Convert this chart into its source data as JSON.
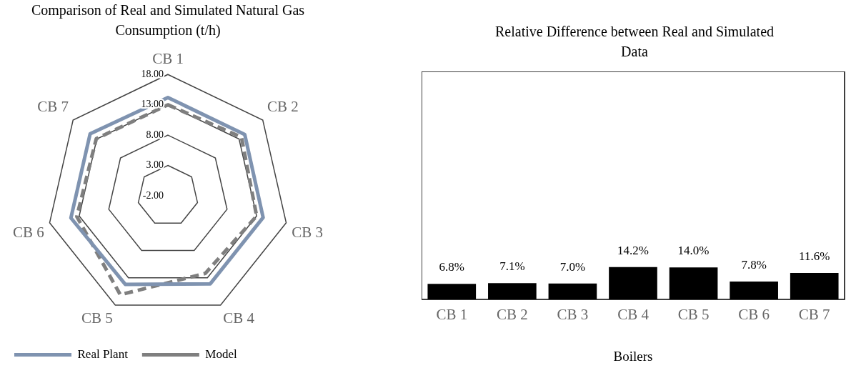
{
  "chart_data": [
    {
      "type": "radar",
      "title": "Comparison of Real and Simulated Natural Gas Consumption (t/h)",
      "categories": [
        "CB 1",
        "CB 2",
        "CB 3",
        "CB 4",
        "CB 5",
        "CB 6",
        "CB 7"
      ],
      "series": [
        {
          "name": "Real Plant",
          "color": "#7f93b0",
          "values": [
            14.2,
            14.2,
            14.1,
            14.1,
            14.2,
            14.4,
            14.4
          ],
          "line_style": "solid"
        },
        {
          "name": "Model",
          "color": "#7f7f7f",
          "values": [
            13.0,
            13.5,
            13.0,
            12.2,
            16.1,
            13.4,
            13.1
          ],
          "line_style": "dashed"
        }
      ],
      "ylim": [
        -2,
        18
      ],
      "yticks": [
        {
          "value": -2,
          "label": "-2.00"
        },
        {
          "value": 3,
          "label": "3.00"
        },
        {
          "value": 8,
          "label": "8.00"
        },
        {
          "value": 13,
          "label": "13.00"
        },
        {
          "value": 18,
          "label": "18.00"
        }
      ],
      "grid": true,
      "legend": "bottom left",
      "marker": "none"
    },
    {
      "type": "bar",
      "title": "Relative Difference between Real and Simulated Data",
      "xlabel": "Boilers",
      "categories": [
        "CB 1",
        "CB 2",
        "CB 3",
        "CB 4",
        "CB 5",
        "CB 6",
        "CB 7"
      ],
      "values": [
        6.8,
        7.1,
        7.0,
        14.2,
        14.0,
        7.8,
        11.6
      ],
      "color": "#000000",
      "value_labels": [
        "6.8%",
        "7.1%",
        "7.0%",
        "14.2%",
        "14.0%",
        "7.8%",
        "11.6%"
      ],
      "ylim": [
        0,
        100
      ],
      "tick_labels": "x",
      "grid": false,
      "legend": false
    }
  ]
}
